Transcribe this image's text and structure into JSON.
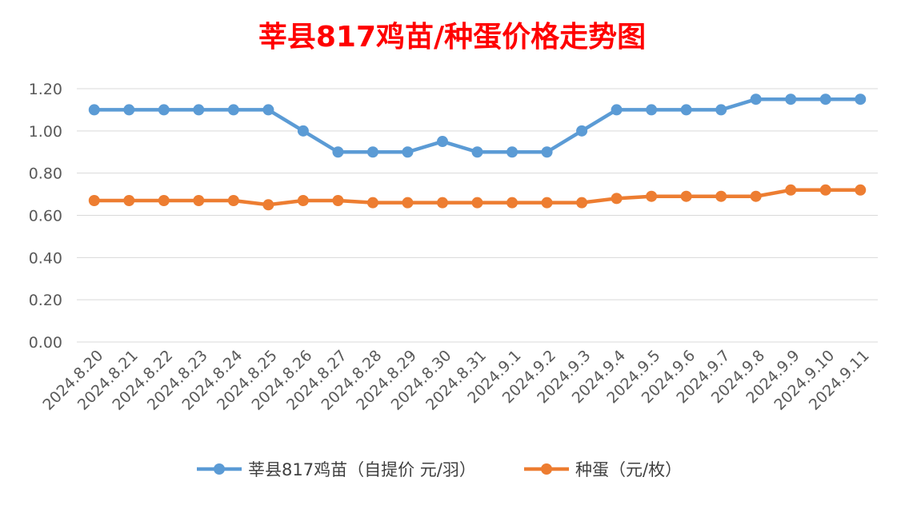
{
  "chart_data": {
    "type": "line",
    "title": "莘县817鸡苗/种蛋价格走势图",
    "title_color": "#ff0000",
    "categories": [
      "2024.8.20",
      "2024.8.21",
      "2024.8.22",
      "2024.8.23",
      "2024.8.24",
      "2024.8.25",
      "2024.8.26",
      "2024.8.27",
      "2024.8.28",
      "2024.8.29",
      "2024.8.30",
      "2024.8.31",
      "2024.9.1",
      "2024.9.2",
      "2024.9.3",
      "2024.9.4",
      "2024.9.5",
      "2024.9.6",
      "2024.9.7",
      "2024.9.8",
      "2024.9.9",
      "2024.9.10",
      "2024.9.11"
    ],
    "series": [
      {
        "name": "莘县817鸡苗（自提价 元/羽）",
        "color": "#5b9bd5",
        "values": [
          1.1,
          1.1,
          1.1,
          1.1,
          1.1,
          1.1,
          1.0,
          0.9,
          0.9,
          0.9,
          0.95,
          0.9,
          0.9,
          0.9,
          1.0,
          1.1,
          1.1,
          1.1,
          1.1,
          1.15,
          1.15,
          1.15,
          1.15
        ]
      },
      {
        "name": "种蛋（元/枚）",
        "color": "#ed7d31",
        "values": [
          0.67,
          0.67,
          0.67,
          0.67,
          0.67,
          0.65,
          0.67,
          0.67,
          0.66,
          0.66,
          0.66,
          0.66,
          0.66,
          0.66,
          0.66,
          0.68,
          0.69,
          0.69,
          0.69,
          0.69,
          0.72,
          0.72,
          0.72
        ]
      }
    ],
    "yticks": [
      "0.00",
      "0.20",
      "0.40",
      "0.60",
      "0.80",
      "1.00",
      "1.20"
    ],
    "ylim": [
      0,
      1.2
    ],
    "grid": true,
    "legend_position": "bottom"
  }
}
